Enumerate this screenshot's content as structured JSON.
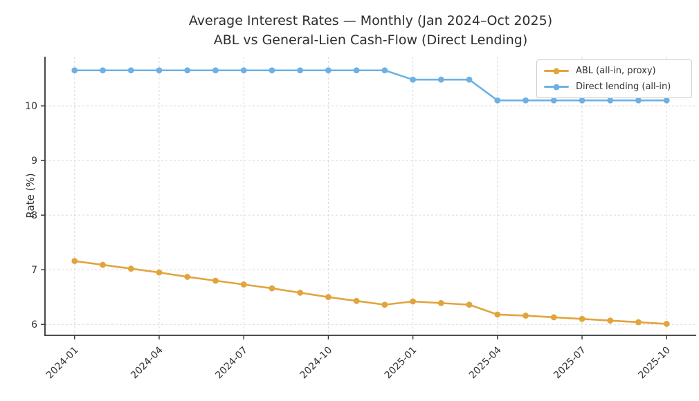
{
  "chart_data": {
    "type": "line",
    "title": "Average Interest Rates — Monthly (Jan 2024–Oct 2025)\nABL vs General-Lien Cash-Flow (Direct Lending)",
    "xlabel": "",
    "ylabel": "Rate (%)",
    "categories": [
      "2024-01",
      "2024-02",
      "2024-03",
      "2024-04",
      "2024-05",
      "2024-06",
      "2024-07",
      "2024-08",
      "2024-09",
      "2024-10",
      "2024-11",
      "2024-12",
      "2025-01",
      "2025-02",
      "2025-03",
      "2025-04",
      "2025-05",
      "2025-06",
      "2025-07",
      "2025-08",
      "2025-09",
      "2025-10"
    ],
    "x_tick_indices": [
      0,
      3,
      6,
      9,
      12,
      15,
      18,
      21
    ],
    "x_tick_labels": [
      "2024-01",
      "2024-04",
      "2024-07",
      "2024-10",
      "2025-01",
      "2025-04",
      "2025-07",
      "2025-10"
    ],
    "y_ticks": [
      6,
      7,
      8,
      9,
      10
    ],
    "ylim": [
      5.8,
      10.9
    ],
    "grid": "dashed-both-axes",
    "legend_position": "upper right",
    "series": [
      {
        "name": "ABL (all-in, proxy)",
        "color": "#e2a43c",
        "values": [
          7.16,
          7.09,
          7.02,
          6.95,
          6.87,
          6.8,
          6.73,
          6.66,
          6.58,
          6.5,
          6.43,
          6.36,
          6.42,
          6.39,
          6.36,
          6.18,
          6.16,
          6.13,
          6.1,
          6.07,
          6.04,
          6.01
        ]
      },
      {
        "name": "Direct lending (all-in)",
        "color": "#6db1e4",
        "values": [
          10.65,
          10.65,
          10.65,
          10.65,
          10.65,
          10.65,
          10.65,
          10.65,
          10.65,
          10.65,
          10.65,
          10.65,
          10.48,
          10.48,
          10.48,
          10.1,
          10.1,
          10.1,
          10.1,
          10.1,
          10.1,
          10.1
        ]
      }
    ]
  }
}
